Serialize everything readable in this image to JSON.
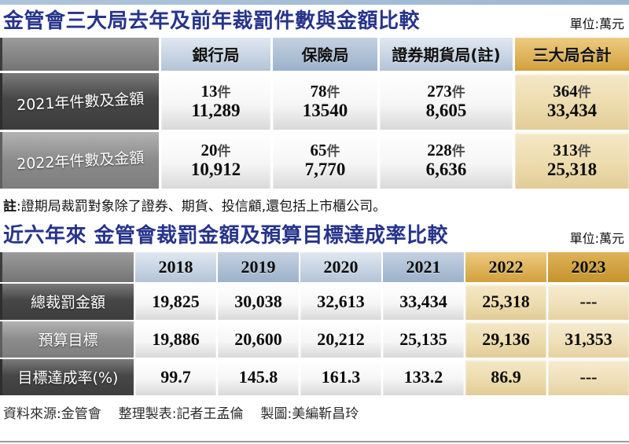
{
  "chart_data": [
    {
      "type": "table",
      "title": "金管會三大局去年及前年裁罰件數與金額比較",
      "unit": "單位:萬元",
      "columns": [
        "銀行局",
        "保險局",
        "證券期貨局(註)",
        "三大局合計"
      ],
      "count_suffix": "件",
      "rows": [
        {
          "label": "2021年件數及金額",
          "cells": [
            {
              "count": "13",
              "amount": "11,289"
            },
            {
              "count": "78",
              "amount": "13540"
            },
            {
              "count": "273",
              "amount": "8,605"
            },
            {
              "count": "364",
              "amount": "33,434"
            }
          ]
        },
        {
          "label": "2022年件數及金額",
          "cells": [
            {
              "count": "20",
              "amount": "10,912"
            },
            {
              "count": "65",
              "amount": "7,770"
            },
            {
              "count": "228",
              "amount": "6,636"
            },
            {
              "count": "313",
              "amount": "25,318"
            }
          ]
        }
      ],
      "note_prefix": "註",
      "note_body": ":證期局裁罰對象除了證券、期貨、投信顧,還包括上市櫃公司。"
    },
    {
      "type": "table",
      "title": "近六年來 金管會裁罰金額及預算目標達成率比較",
      "unit": "單位:萬元",
      "columns": [
        "2018",
        "2019",
        "2020",
        "2021",
        "2022",
        "2023"
      ],
      "rows": [
        {
          "label": "總裁罰金額",
          "values": [
            "19,825",
            "30,038",
            "32,613",
            "33,434",
            "25,318",
            "---"
          ]
        },
        {
          "label": "預算目標",
          "values": [
            "19,886",
            "20,600",
            "20,212",
            "25,135",
            "29,136",
            "31,353"
          ]
        },
        {
          "label": "目標達成率(%)",
          "values": [
            "99.7",
            "145.8",
            "161.3",
            "133.2",
            "86.9",
            "---"
          ]
        }
      ]
    }
  ],
  "footer": {
    "parts": [
      "資料來源:金管會",
      "整理製表:記者王孟倫",
      "製圖:美編靳昌玲"
    ]
  },
  "colors": {
    "title_navy": "#27348b",
    "header_blue_light": "#c9d6e4",
    "header_blue_dark": "#a9bdd2",
    "header_gold": "#dcaa45",
    "header_gold_dark": "#c5942c",
    "row_label_dark": "#474747",
    "row_label_mid": "#8b8b8b",
    "total_cell_tan": "#ecdcae",
    "top_bar_blue": "#a3bdd6"
  }
}
